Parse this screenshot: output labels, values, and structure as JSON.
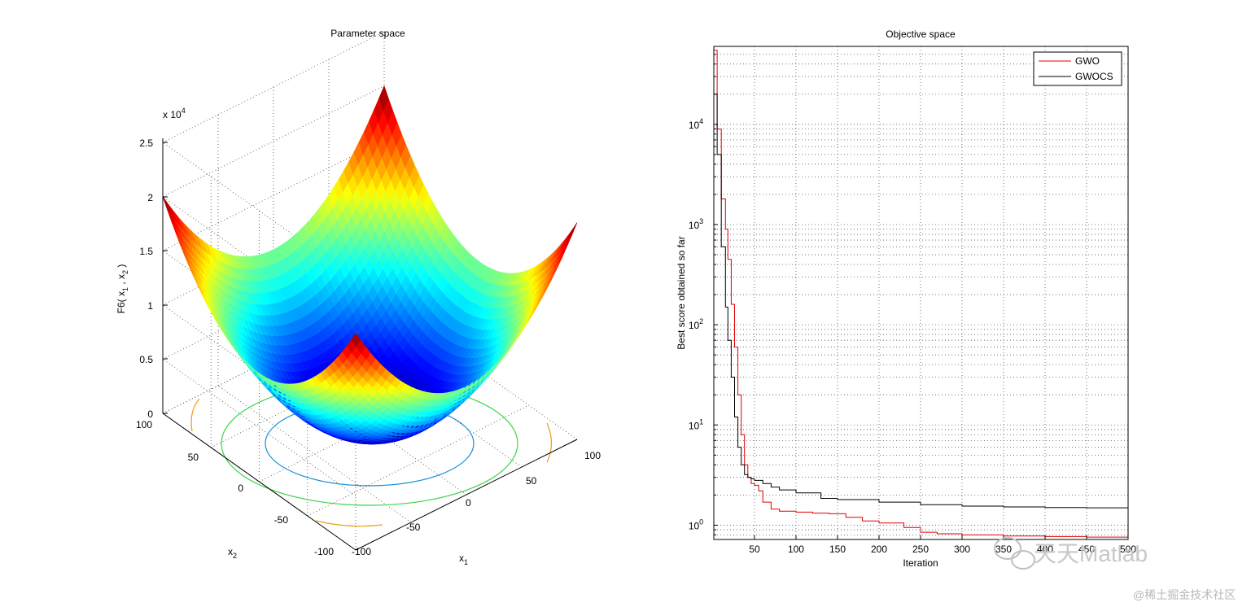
{
  "chart_data": [
    {
      "type": "surface",
      "title": "Parameter space",
      "xlabel": "x",
      "xlabel_sub": "1",
      "ylabel": "x",
      "ylabel_sub": "2",
      "zlabel": "F6( x",
      "zlabel_sub1": "1",
      "zlabel_mid": " , x",
      "zlabel_sub2": "2",
      "zlabel_end": " )",
      "zscale_label": "x 10",
      "zscale_exp": "4",
      "x_ticks": [
        "-100",
        "-50",
        "0",
        "50",
        "100"
      ],
      "y_ticks": [
        "-100",
        "-50",
        "0",
        "50",
        "100"
      ],
      "z_ticks": [
        "0",
        "0.5",
        "1",
        "1.5",
        "2",
        "2.5"
      ],
      "xlim": [
        -100,
        100
      ],
      "ylim": [
        -100,
        100
      ],
      "zlim": [
        0,
        25000
      ],
      "function": "sum of squares f(x1,x2) = x1^2 + x2^2",
      "grid": true,
      "colormap": "jet"
    },
    {
      "type": "line",
      "title": "Objective space",
      "xlabel": "Iteration",
      "ylabel": "Best score obtained so far",
      "yscale": "log",
      "xlim": [
        1,
        500
      ],
      "ylim": [
        0.72,
        60000
      ],
      "x_ticks": [
        "50",
        "100",
        "150",
        "200",
        "250",
        "300",
        "350",
        "400",
        "450",
        "500"
      ],
      "y_ticks": [
        {
          "base": "10",
          "exp": "0"
        },
        {
          "base": "10",
          "exp": "1"
        },
        {
          "base": "10",
          "exp": "2"
        },
        {
          "base": "10",
          "exp": "3"
        },
        {
          "base": "10",
          "exp": "4"
        }
      ],
      "legend_position": "top-right",
      "grid": true,
      "series": [
        {
          "name": "GWO",
          "color": "#e00000",
          "x": [
            1,
            5,
            10,
            15,
            18,
            22,
            26,
            30,
            34,
            38,
            42,
            46,
            50,
            55,
            60,
            70,
            80,
            100,
            120,
            140,
            160,
            180,
            200,
            230,
            250,
            270,
            300,
            350,
            400,
            450,
            500
          ],
          "y": [
            55000,
            9000,
            1800,
            900,
            450,
            160,
            60,
            20,
            8,
            4,
            3,
            2.6,
            2.5,
            2.2,
            1.7,
            1.45,
            1.38,
            1.35,
            1.32,
            1.3,
            1.2,
            1.1,
            1.05,
            0.95,
            0.85,
            0.82,
            0.8,
            0.78,
            0.77,
            0.76,
            0.75
          ]
        },
        {
          "name": "GWOCS",
          "color": "#000000",
          "x": [
            1,
            5,
            10,
            15,
            18,
            22,
            26,
            30,
            34,
            38,
            42,
            46,
            50,
            60,
            70,
            80,
            100,
            130,
            150,
            200,
            250,
            300,
            350,
            400,
            450,
            500
          ],
          "y": [
            20000,
            5000,
            600,
            150,
            70,
            30,
            12,
            6,
            4,
            3.2,
            3.0,
            2.9,
            2.8,
            2.6,
            2.4,
            2.25,
            2.1,
            1.85,
            1.8,
            1.7,
            1.6,
            1.55,
            1.52,
            1.5,
            1.49,
            1.48
          ]
        }
      ]
    }
  ],
  "watermark": {
    "text": "天天Matlab",
    "source": "@稀土掘金技术社区"
  }
}
